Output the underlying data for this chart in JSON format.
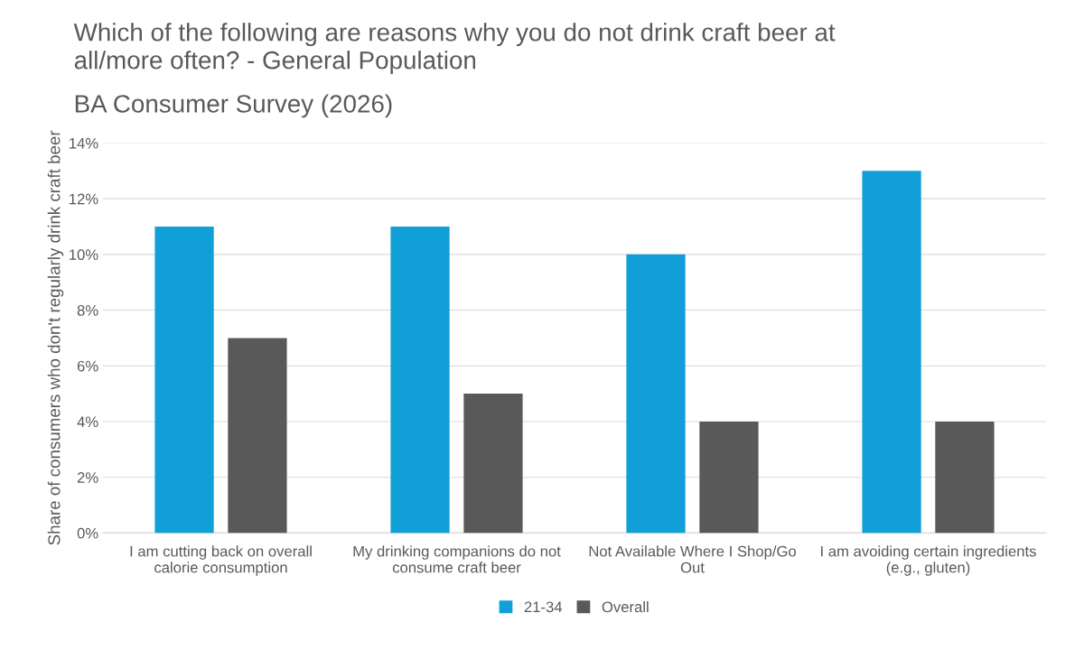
{
  "chart_data": {
    "type": "bar",
    "title": "Which of the following are reasons why you do not drink craft beer at\nall/more often? - General Population",
    "subtitle": "BA Consumer Survey (2026)",
    "ylabel": "Share of consumers who don't regularly drink craft beer",
    "categories": [
      "I am cutting back on overall\ncalorie consumption",
      "My drinking companions do not\nconsume craft beer",
      "Not Available Where I Shop/Go\nOut",
      "I am avoiding certain ingredients\n(e.g., gluten)"
    ],
    "series": [
      {
        "name": "21-34",
        "color": "#119fd8",
        "values": [
          11,
          11,
          10,
          13
        ]
      },
      {
        "name": "Overall",
        "color": "#595959",
        "values": [
          7,
          5,
          4,
          4
        ]
      }
    ],
    "ylim": [
      0,
      14
    ],
    "yticks": [
      {
        "value": 0,
        "label": "0%"
      },
      {
        "value": 2,
        "label": "2%"
      },
      {
        "value": 4,
        "label": "4%"
      },
      {
        "value": 6,
        "label": "6%"
      },
      {
        "value": 8,
        "label": "8%"
      },
      {
        "value": 10,
        "label": "10%"
      },
      {
        "value": 12,
        "label": "12%"
      },
      {
        "value": 14,
        "label": "14%"
      }
    ],
    "grid": "y",
    "legend": "bottom"
  }
}
